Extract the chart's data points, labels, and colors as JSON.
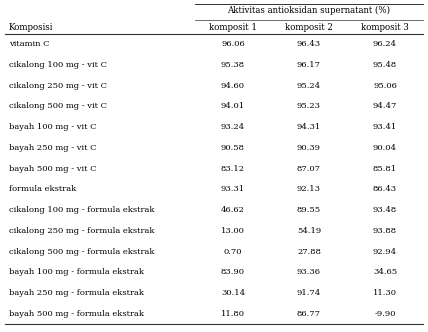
{
  "title_header": "Aktivitas antioksidan supernatant (%)",
  "col_header_main": "Komposisi",
  "col_headers": [
    "komposit 1",
    "komposit 2",
    "komposit 3"
  ],
  "rows": [
    [
      "vitamin C",
      "96.06",
      "96.43",
      "96.24"
    ],
    [
      "cikalong 100 mg - vit C",
      "95.38",
      "96.17",
      "95.48"
    ],
    [
      "cikalong 250 mg - vit C",
      "94.60",
      "95.24",
      "95.06"
    ],
    [
      "cikalong 500 mg - vit C",
      "94.01",
      "95.23",
      "94.47"
    ],
    [
      "bayah 100 mg - vit C",
      "93.24",
      "94.31",
      "93.41"
    ],
    [
      "bayah 250 mg - vit C",
      "90.58",
      "90.39",
      "90.04"
    ],
    [
      "bayah 500 mg - vit C",
      "83.12",
      "87.07",
      "85.81"
    ],
    [
      "formula ekstrak",
      "93.31",
      "92.13",
      "86.43"
    ],
    [
      "cikalong 100 mg - formula ekstrak",
      "46.62",
      "89.55",
      "93.48"
    ],
    [
      "cikalong 250 mg - formula ekstrak",
      "13.00",
      "54.19",
      "93.88"
    ],
    [
      "cikalong 500 mg - formula ekstrak",
      "0.70",
      "27.88",
      "92.94"
    ],
    [
      "bayah 100 mg - formula ekstrak",
      "83.90",
      "93.36",
      "34.65"
    ],
    [
      "bayah 250 mg - formula ekstrak",
      "30.14",
      "91.74",
      "11.30"
    ],
    [
      "bayah 500 mg - formula ekstrak",
      "11.80",
      "86.77",
      "-9.90"
    ]
  ],
  "bg_color": "#ffffff",
  "line_color": "#333333",
  "text_color": "#000000",
  "font_size": 6.0,
  "header_font_size": 6.2,
  "fig_width": 4.28,
  "fig_height": 3.32,
  "dpi": 100
}
